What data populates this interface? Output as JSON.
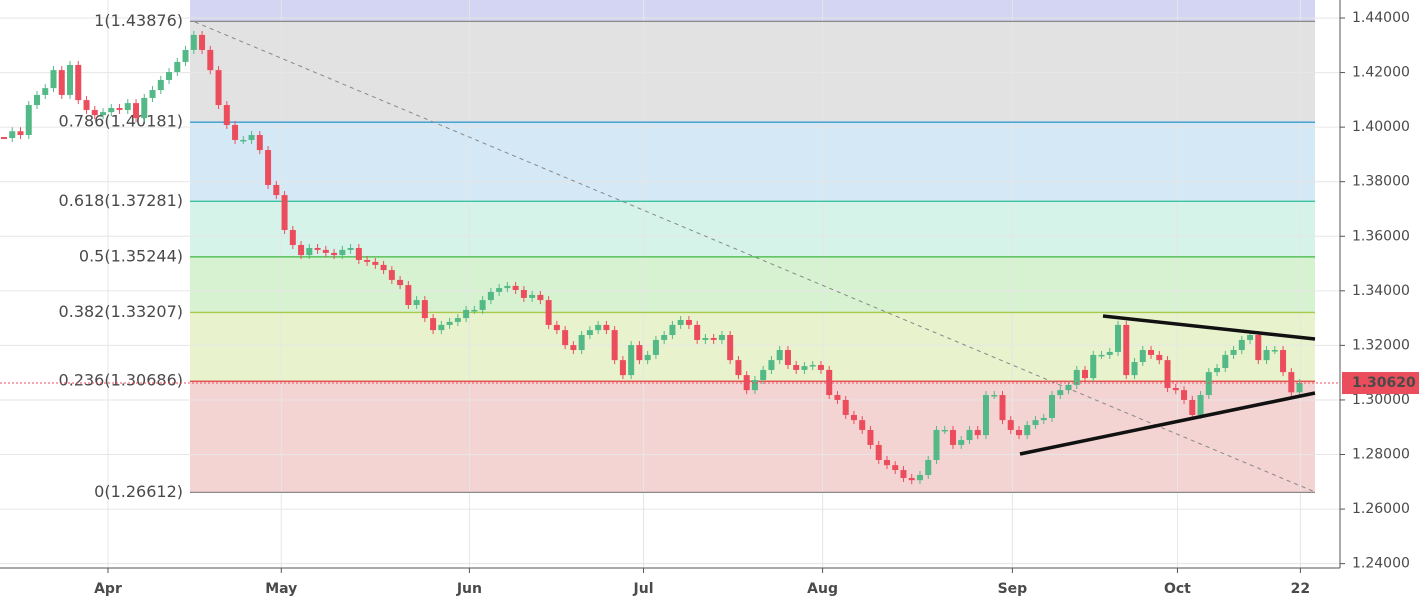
{
  "chart_data": {
    "type": "candlestick",
    "values": [
      1.396,
      1.3985,
      1.3971,
      1.4081,
      1.4118,
      1.4143,
      1.4209,
      1.4118,
      1.4228,
      1.4099,
      1.4063,
      1.4044,
      1.4055,
      1.407,
      1.4063,
      1.4088,
      1.4033,
      1.4107,
      1.4136,
      1.4173,
      1.4202,
      1.4239,
      1.4283,
      1.4338,
      1.4283,
      1.4209,
      1.4081,
      1.4008,
      1.3953,
      1.3953,
      1.3971,
      1.3916,
      1.3788,
      1.3751,
      1.3623,
      1.3568,
      1.3531,
      1.3557,
      1.355,
      1.3539,
      1.3531,
      1.355,
      1.3557,
      1.3513,
      1.3506,
      1.3495,
      1.3476,
      1.344,
      1.3421,
      1.3348,
      1.3366,
      1.33,
      1.3256,
      1.3275,
      1.3286,
      1.33,
      1.333,
      1.333,
      1.3366,
      1.3396,
      1.341,
      1.3418,
      1.3403,
      1.3374,
      1.3385,
      1.3366,
      1.3275,
      1.3256,
      1.3201,
      1.3183,
      1.3238,
      1.3256,
      1.3275,
      1.3256,
      1.3146,
      1.3091,
      1.3201,
      1.3146,
      1.3165,
      1.322,
      1.3238,
      1.3275,
      1.3293,
      1.3275,
      1.322,
      1.3227,
      1.322,
      1.3238,
      1.3146,
      1.3091,
      1.3036,
      1.3073,
      1.311,
      1.3146,
      1.3183,
      1.3128,
      1.311,
      1.3124,
      1.3128,
      1.311,
      1.3018,
      1.3,
      1.2945,
      1.2926,
      1.289,
      1.2835,
      1.278,
      1.2761,
      1.2743,
      1.2714,
      1.2706,
      1.2725,
      1.278,
      1.289,
      1.289,
      1.2835,
      1.2853,
      1.289,
      1.2871,
      1.3018,
      1.3018,
      1.2926,
      1.289,
      1.2871,
      1.2908,
      1.2926,
      1.2934,
      1.3018,
      1.3036,
      1.3055,
      1.311,
      1.308,
      1.3165,
      1.3165,
      1.3176,
      1.3275,
      1.3091,
      1.3139,
      1.3183,
      1.3165,
      1.3146,
      1.3044,
      1.3036,
      1.3,
      1.2945,
      1.3018,
      1.3102,
      1.3117,
      1.3165,
      1.3183,
      1.322,
      1.3238,
      1.3146,
      1.3183,
      1.3183,
      1.3102,
      1.3028,
      1.3062
    ],
    "up_color": "#53b987",
    "down_color": "#eb4d5c",
    "xlim": [
      -0.485,
      161.9
    ],
    "xticks": [
      {
        "value": 12.6,
        "label": "Apr"
      },
      {
        "value": 33.6,
        "label": "May"
      },
      {
        "value": 56.4,
        "label": "Jun"
      },
      {
        "value": 77.5,
        "label": "Jul"
      },
      {
        "value": 99.2,
        "label": "Aug"
      },
      {
        "value": 122.2,
        "label": "Sep"
      },
      {
        "value": 142.2,
        "label": "Oct"
      },
      {
        "value": 157.1,
        "label": "22"
      }
    ],
    "ylim": [
      1.2384,
      1.4466
    ],
    "yticks": [
      {
        "value": 1.24,
        "label": "1.24000"
      },
      {
        "value": 1.26,
        "label": "1.26000"
      },
      {
        "value": 1.28,
        "label": "1.28000"
      },
      {
        "value": 1.3,
        "label": "1.30000"
      },
      {
        "value": 1.32,
        "label": "1.32000"
      },
      {
        "value": 1.34,
        "label": "1.34000"
      },
      {
        "value": 1.36,
        "label": "1.36000"
      },
      {
        "value": 1.38,
        "label": "1.38000"
      },
      {
        "value": 1.4,
        "label": "1.40000"
      },
      {
        "value": 1.42,
        "label": "1.42000"
      },
      {
        "value": 1.44,
        "label": "1.44000"
      }
    ],
    "grid": true,
    "fib_levels": [
      {
        "label": "1(1.43876)",
        "value": 1.43876,
        "color": "#8a8a8a",
        "band_color": "#d3d5f2"
      },
      {
        "label": "0.786(1.40181)",
        "value": 1.40181,
        "color": "#3b9ad0",
        "band_color": "#e2e2e2"
      },
      {
        "label": "0.618(1.37281)",
        "value": 1.37281,
        "color": "#3cc4a0",
        "band_color": "#d4e8f5"
      },
      {
        "label": "0.5(1.35244)",
        "value": 1.35244,
        "color": "#3fb83f",
        "band_color": "#d5f3e8"
      },
      {
        "label": "0.382(1.33207)",
        "value": 1.33207,
        "color": "#a8c94c",
        "band_color": "#d7f2d1"
      },
      {
        "label": "0.236(1.30686)",
        "value": 1.30686,
        "color": "#e03c3c",
        "band_color": "#e8f2cd"
      },
      {
        "label": "0(1.26612)",
        "value": 1.26612,
        "color": "#8a8a8a",
        "band_color": "#f4d3d3"
      }
    ],
    "last_price": {
      "value": 1.3062,
      "label": "1.30620",
      "color": "#eb4d5c"
    }
  }
}
